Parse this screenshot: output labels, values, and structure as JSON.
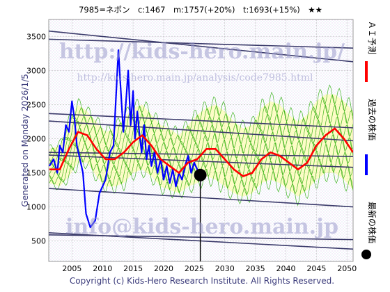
{
  "header": {
    "title": "7985=ネポン　c:1467　m:1757(+20%)　t:1693(+15%)　★★"
  },
  "side": {
    "generated": "Generated on Monday 2026/1/5."
  },
  "watermarks": {
    "url_top": "http://kids-hero.main.jp/",
    "url_analysis": "http://kids-hero.main.jp/analysis/code7985.html",
    "email": "info@kids-hero.main.jp"
  },
  "footer": {
    "copyright": "Copyright (c) Kids-Hero Research Institute. All Rights Reserved."
  },
  "legend": {
    "ai": "ＡＩ予測",
    "past": "過去の株価",
    "latest": "最新の株価"
  },
  "colors": {
    "ai": "#ff0000",
    "past": "#0000ff",
    "latest": "#000000",
    "band": "#22aa00",
    "band_fill": "#ffff99",
    "trend": "#3a3a6a"
  },
  "chart_data": {
    "type": "line",
    "title": "7985=ネポン　c:1467　m:1757(+20%)　t:1693(+15%)　★★",
    "xlim": [
      2001.2,
      2051.0
    ],
    "ylim": [
      200,
      3750
    ],
    "x_ticks": [
      2005,
      2010,
      2015,
      2020,
      2025,
      2030,
      2035,
      2040,
      2045,
      2050
    ],
    "y_ticks": [
      500,
      1000,
      1500,
      2000,
      2500,
      3000,
      3500
    ],
    "x_tick_labels": [
      "2005",
      "2010",
      "2015",
      "2020",
      "2025",
      "2030",
      "2035",
      "2040",
      "2045",
      "2050"
    ],
    "y_tick_labels": [
      "500",
      "1000",
      "1500",
      "2000",
      "2500",
      "3000",
      "3500"
    ],
    "grid": true,
    "latest_point": {
      "x": 2026.0,
      "y": 1467
    },
    "trend_lines": [
      {
        "x": [
          2001.2,
          2051.0
        ],
        "y": [
          3580,
          3130
        ]
      },
      {
        "x": [
          2001.2,
          2051.0
        ],
        "y": [
          3460,
          3330
        ]
      },
      {
        "x": [
          2001.2,
          2051.0
        ],
        "y": [
          2370,
          2160
        ]
      },
      {
        "x": [
          2001.2,
          2051.0
        ],
        "y": [
          2260,
          1970
        ]
      },
      {
        "x": [
          2001.2,
          2051.0
        ],
        "y": [
          1800,
          1740
        ]
      },
      {
        "x": [
          2001.2,
          2051.0
        ],
        "y": [
          1760,
          1580
        ]
      },
      {
        "x": [
          2001.2,
          2051.0
        ],
        "y": [
          1270,
          1000
        ]
      },
      {
        "x": [
          2001.2,
          2051.0
        ],
        "y": [
          620,
          380
        ]
      },
      {
        "x": [
          2001.2,
          2051.0
        ],
        "y": [
          590,
          520
        ]
      }
    ],
    "series": [
      {
        "name": "過去の株価",
        "x": [
          2001.3,
          2002.0,
          2002.6,
          2003.0,
          2003.5,
          2004.0,
          2004.5,
          2005.0,
          2005.4,
          2005.8,
          2006.3,
          2006.8,
          2007.3,
          2008.0,
          2008.8,
          2009.5,
          2010.5,
          2011.2,
          2011.8,
          2012.2,
          2012.6,
          2013.0,
          2013.4,
          2013.8,
          2014.2,
          2014.6,
          2015.0,
          2015.3,
          2015.7,
          2016.0,
          2016.4,
          2016.8,
          2017.2,
          2017.6,
          2018.0,
          2018.5,
          2019.0,
          2019.5,
          2020.0,
          2020.5,
          2021.0,
          2021.5,
          2022.0,
          2022.5,
          2023.0,
          2023.5,
          2024.0,
          2024.5,
          2025.0,
          2025.5,
          2026.0
        ],
        "y": [
          1600,
          1700,
          1500,
          1900,
          1800,
          2200,
          2100,
          2550,
          2300,
          1900,
          1700,
          1500,
          900,
          700,
          800,
          1200,
          1400,
          1800,
          1900,
          2600,
          3300,
          2700,
          2100,
          2500,
          3000,
          2200,
          2700,
          2000,
          2400,
          2100,
          1800,
          2200,
          1700,
          1900,
          1600,
          1800,
          1500,
          1700,
          1400,
          1600,
          1350,
          1550,
          1300,
          1500,
          1400,
          1600,
          1750,
          1500,
          1650,
          1550,
          1467
        ]
      },
      {
        "name": "ＡＩ予測",
        "x": [
          2001.3,
          2003.0,
          2004.5,
          2006.0,
          2007.5,
          2009.0,
          2010.5,
          2012.0,
          2013.5,
          2015.0,
          2016.5,
          2018.0,
          2019.5,
          2021.0,
          2022.5,
          2024.0,
          2025.5,
          2027.0,
          2028.5,
          2030.0,
          2031.5,
          2033.0,
          2034.5,
          2036.0,
          2037.5,
          2039.0,
          2040.5,
          2042.0,
          2043.5,
          2045.0,
          2046.5,
          2048.0,
          2049.5,
          2051.0
        ],
        "y": [
          1550,
          1550,
          1850,
          2100,
          2050,
          1850,
          1700,
          1700,
          1800,
          1950,
          2050,
          1900,
          1700,
          1600,
          1500,
          1650,
          1700,
          1850,
          1850,
          1700,
          1550,
          1450,
          1500,
          1700,
          1800,
          1750,
          1650,
          1550,
          1650,
          1900,
          2050,
          2150,
          2000,
          1800
        ]
      }
    ],
    "band": {
      "x": [
        2001.3,
        2003.0,
        2004.5,
        2006.0,
        2007.5,
        2009.0,
        2010.5,
        2012.0,
        2013.5,
        2015.0,
        2016.5,
        2018.0,
        2019.5,
        2021.0,
        2022.5,
        2024.0,
        2025.5,
        2027.0,
        2028.5,
        2030.0,
        2031.5,
        2033.0,
        2034.5,
        2036.0,
        2037.5,
        2039.0,
        2040.5,
        2042.0,
        2043.5,
        2045.0,
        2046.5,
        2048.0,
        2049.5,
        2051.0
      ],
      "low": [
        1350,
        1300,
        1450,
        1650,
        1650,
        1450,
        1300,
        1300,
        1350,
        1500,
        1550,
        1450,
        1300,
        1250,
        1200,
        1300,
        1350,
        1450,
        1400,
        1300,
        1200,
        1150,
        1200,
        1350,
        1400,
        1350,
        1250,
        1150,
        1250,
        1400,
        1500,
        1500,
        1400,
        1250
      ],
      "high": [
        1850,
        1900,
        2250,
        2500,
        2400,
        2250,
        2100,
        2150,
        2300,
        2450,
        2500,
        2350,
        2200,
        2150,
        2050,
        2200,
        2350,
        2450,
        2500,
        2400,
        2250,
        2150,
        2200,
        2450,
        2550,
        2500,
        2350,
        2250,
        2350,
        2550,
        2650,
        2650,
        2550,
        2400
      ]
    }
  }
}
